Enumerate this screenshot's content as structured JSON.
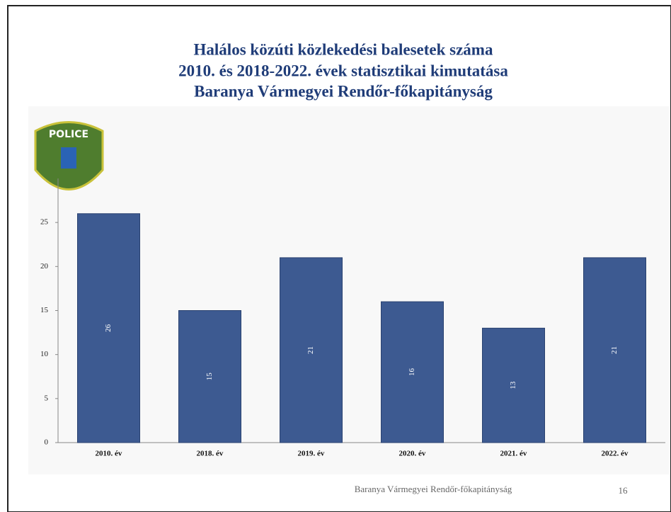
{
  "chart_data": {
    "type": "bar",
    "title": [
      "Halálos közúti közlekedési balesetek száma",
      "2010. és 2018-2022. évek statisztikai kimutatása",
      "Baranya Vármegyei Rendőr-főkapitányság"
    ],
    "logo_text": "POLICE",
    "categories": [
      "2010. év",
      "2018. év",
      "2019. év",
      "2020. év",
      "2021. év",
      "2022. év"
    ],
    "values": [
      26,
      15,
      21,
      16,
      13,
      21
    ],
    "color": "#3d5a91",
    "ylim": [
      0,
      30
    ],
    "yticks": [
      0,
      5,
      10,
      15,
      20,
      25
    ],
    "footer": "Baranya Vármegyei Rendőr-főkapitányság",
    "page_number": "16"
  }
}
